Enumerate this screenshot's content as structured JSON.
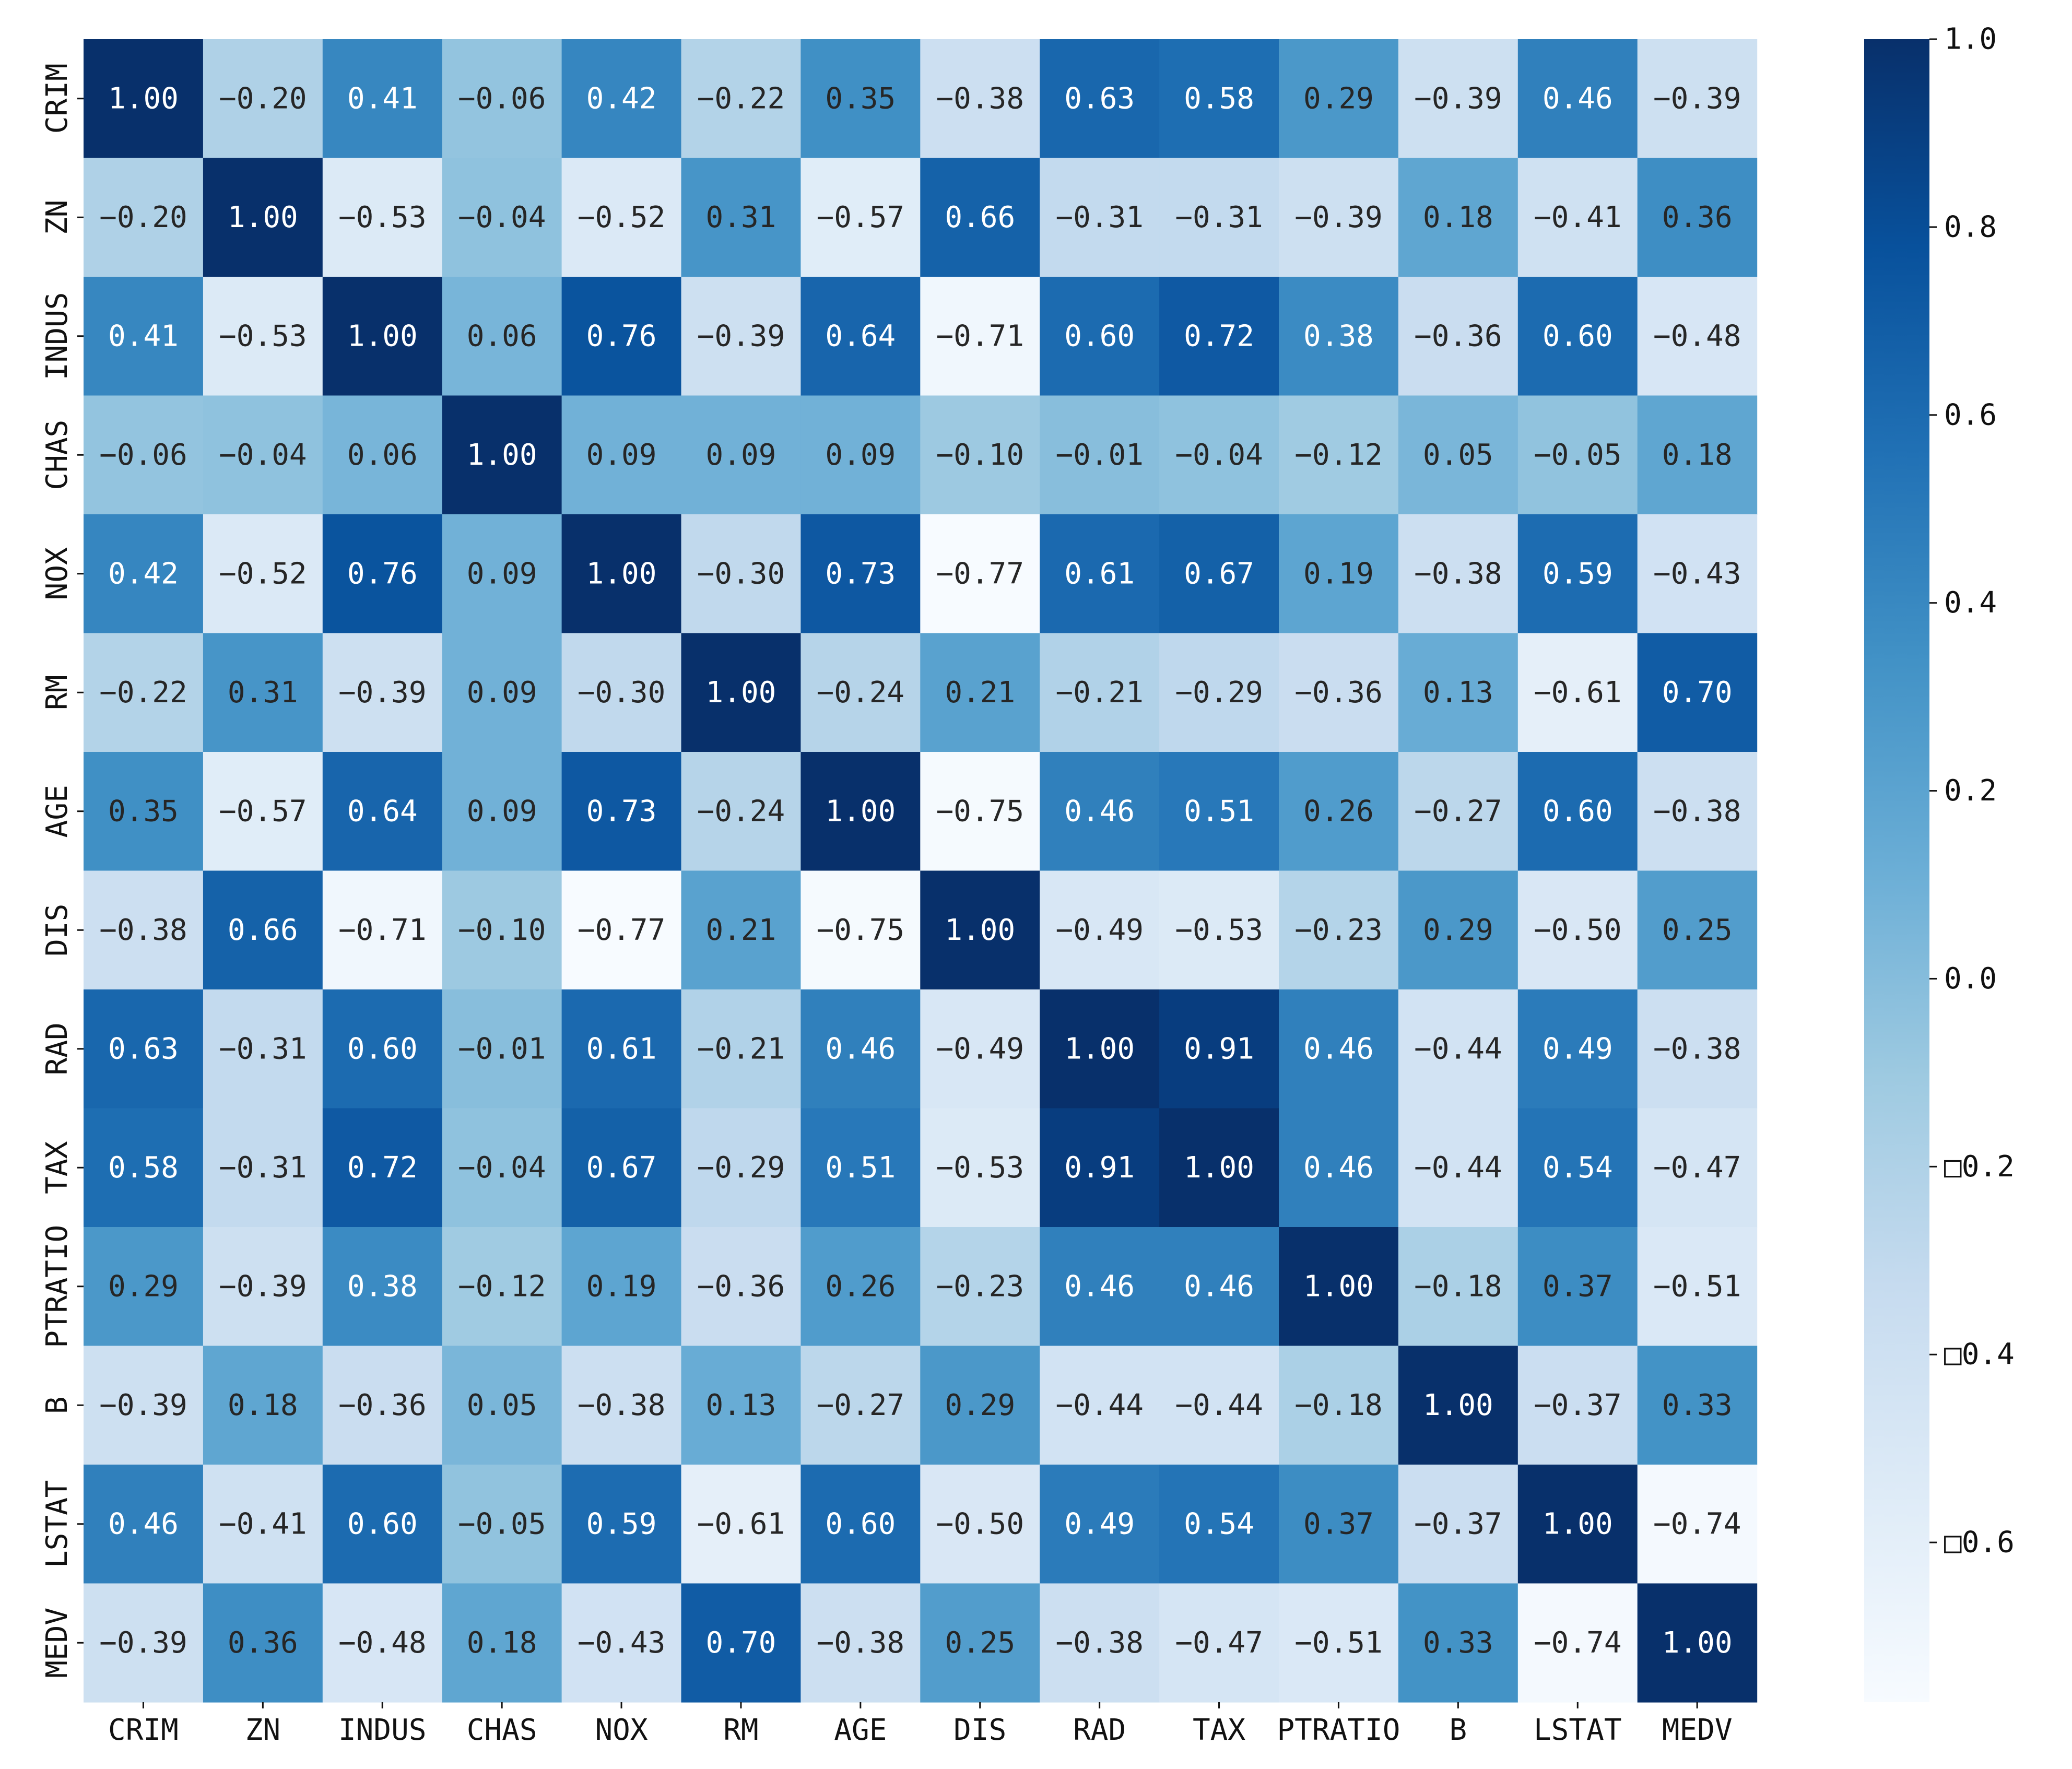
{
  "chart_data": {
    "type": "heatmap",
    "title": "",
    "xlabel": "",
    "ylabel": "",
    "colormap": "Blues",
    "colormap_stops": [
      "#f7fbff",
      "#deebf7",
      "#c6dbef",
      "#9ecae1",
      "#6baed6",
      "#4292c6",
      "#2171b5",
      "#08519c",
      "#08306b"
    ],
    "color_range": [
      -0.77,
      1.0
    ],
    "annotation_light_color": "#ffffff",
    "annotation_dark_color": "#262626",
    "x_categories": [
      "CRIM",
      "ZN",
      "INDUS",
      "CHAS",
      "NOX",
      "RM",
      "AGE",
      "DIS",
      "RAD",
      "TAX",
      "PTRATIO",
      "B",
      "LSTAT",
      "MEDV"
    ],
    "y_categories": [
      "CRIM",
      "ZN",
      "INDUS",
      "CHAS",
      "NOX",
      "RM",
      "AGE",
      "DIS",
      "RAD",
      "TAX",
      "PTRATIO",
      "B",
      "LSTAT",
      "MEDV"
    ],
    "values": [
      [
        1.0,
        -0.2,
        0.41,
        -0.06,
        0.42,
        -0.22,
        0.35,
        -0.38,
        0.63,
        0.58,
        0.29,
        -0.39,
        0.46,
        -0.39
      ],
      [
        -0.2,
        1.0,
        -0.53,
        -0.04,
        -0.52,
        0.31,
        -0.57,
        0.66,
        -0.31,
        -0.31,
        -0.39,
        0.18,
        -0.41,
        0.36
      ],
      [
        0.41,
        -0.53,
        1.0,
        0.06,
        0.76,
        -0.39,
        0.64,
        -0.71,
        0.6,
        0.72,
        0.38,
        -0.36,
        0.6,
        -0.48
      ],
      [
        -0.06,
        -0.04,
        0.06,
        1.0,
        0.09,
        0.09,
        0.09,
        -0.1,
        -0.01,
        -0.04,
        -0.12,
        0.05,
        -0.05,
        0.18
      ],
      [
        0.42,
        -0.52,
        0.76,
        0.09,
        1.0,
        -0.3,
        0.73,
        -0.77,
        0.61,
        0.67,
        0.19,
        -0.38,
        0.59,
        -0.43
      ],
      [
        -0.22,
        0.31,
        -0.39,
        0.09,
        -0.3,
        1.0,
        -0.24,
        0.21,
        -0.21,
        -0.29,
        -0.36,
        0.13,
        -0.61,
        0.7
      ],
      [
        0.35,
        -0.57,
        0.64,
        0.09,
        0.73,
        -0.24,
        1.0,
        -0.75,
        0.46,
        0.51,
        0.26,
        -0.27,
        0.6,
        -0.38
      ],
      [
        -0.38,
        0.66,
        -0.71,
        -0.1,
        -0.77,
        0.21,
        -0.75,
        1.0,
        -0.49,
        -0.53,
        -0.23,
        0.29,
        -0.5,
        0.25
      ],
      [
        0.63,
        -0.31,
        0.6,
        -0.01,
        0.61,
        -0.21,
        0.46,
        -0.49,
        1.0,
        0.91,
        0.46,
        -0.44,
        0.49,
        -0.38
      ],
      [
        0.58,
        -0.31,
        0.72,
        -0.04,
        0.67,
        -0.29,
        0.51,
        -0.53,
        0.91,
        1.0,
        0.46,
        -0.44,
        0.54,
        -0.47
      ],
      [
        0.29,
        -0.39,
        0.38,
        -0.12,
        0.19,
        -0.36,
        0.26,
        -0.23,
        0.46,
        0.46,
        1.0,
        -0.18,
        0.37,
        -0.51
      ],
      [
        -0.39,
        0.18,
        -0.36,
        0.05,
        -0.38,
        0.13,
        -0.27,
        0.29,
        -0.44,
        -0.44,
        -0.18,
        1.0,
        -0.37,
        0.33
      ],
      [
        0.46,
        -0.41,
        0.6,
        -0.05,
        0.59,
        -0.61,
        0.6,
        -0.5,
        0.49,
        0.54,
        0.37,
        -0.37,
        1.0,
        -0.74
      ],
      [
        -0.39,
        0.36,
        -0.48,
        0.18,
        -0.43,
        0.7,
        -0.38,
        0.25,
        -0.38,
        -0.47,
        -0.51,
        0.33,
        -0.74,
        1.0
      ]
    ],
    "colorbar": {
      "ticks": [
        1.0,
        0.8,
        0.6,
        0.4,
        0.2,
        0.0,
        -0.2,
        -0.4,
        -0.6
      ],
      "tick_labels": [
        "1.0",
        "0.8",
        "0.6",
        "0.4",
        "0.2",
        "0.0",
        "□0.2",
        "□0.4",
        "□0.6"
      ]
    },
    "grid": false,
    "legend": "colorbar-right"
  }
}
